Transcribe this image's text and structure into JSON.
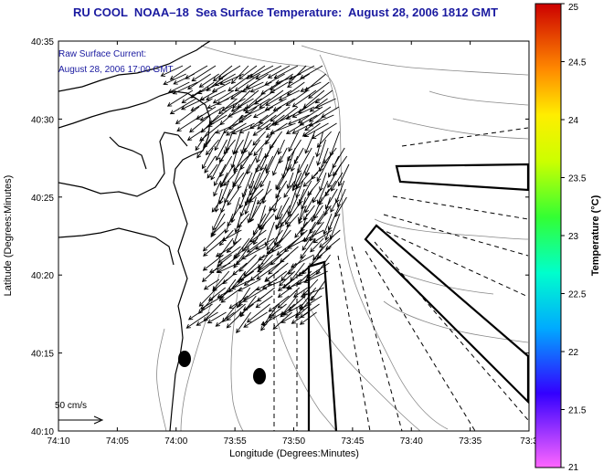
{
  "title": "RU COOL  NOAA–18  Sea Surface Temperature:  August 28, 2006 1812 GMT",
  "annotation": {
    "line1": "Raw Surface Current:",
    "line2": "August 28, 2006 17:00 GMT"
  },
  "scale_label": "50 cm/s",
  "axes": {
    "xlabel": "Longitude (Degrees:Minutes)",
    "ylabel": "Latitude (Degrees:Minutes)",
    "xticks": [
      "74:10",
      "74:05",
      "74:00",
      "73:55",
      "73:50",
      "73:45",
      "73:40",
      "73:35",
      "73:3"
    ],
    "yticks": [
      "40:35",
      "40:30",
      "40:25",
      "40:20",
      "40:15",
      "40:10"
    ]
  },
  "colorbar": {
    "title": "Temperature (°C)",
    "ticks": [
      "25",
      "24.5",
      "24",
      "23.5",
      "23",
      "22.5",
      "22",
      "21.5",
      "21"
    ],
    "min": 21,
    "max": 25
  },
  "colors": {
    "title_text": "#1a1aa0",
    "annotation_text": "#1a1aa0"
  }
}
